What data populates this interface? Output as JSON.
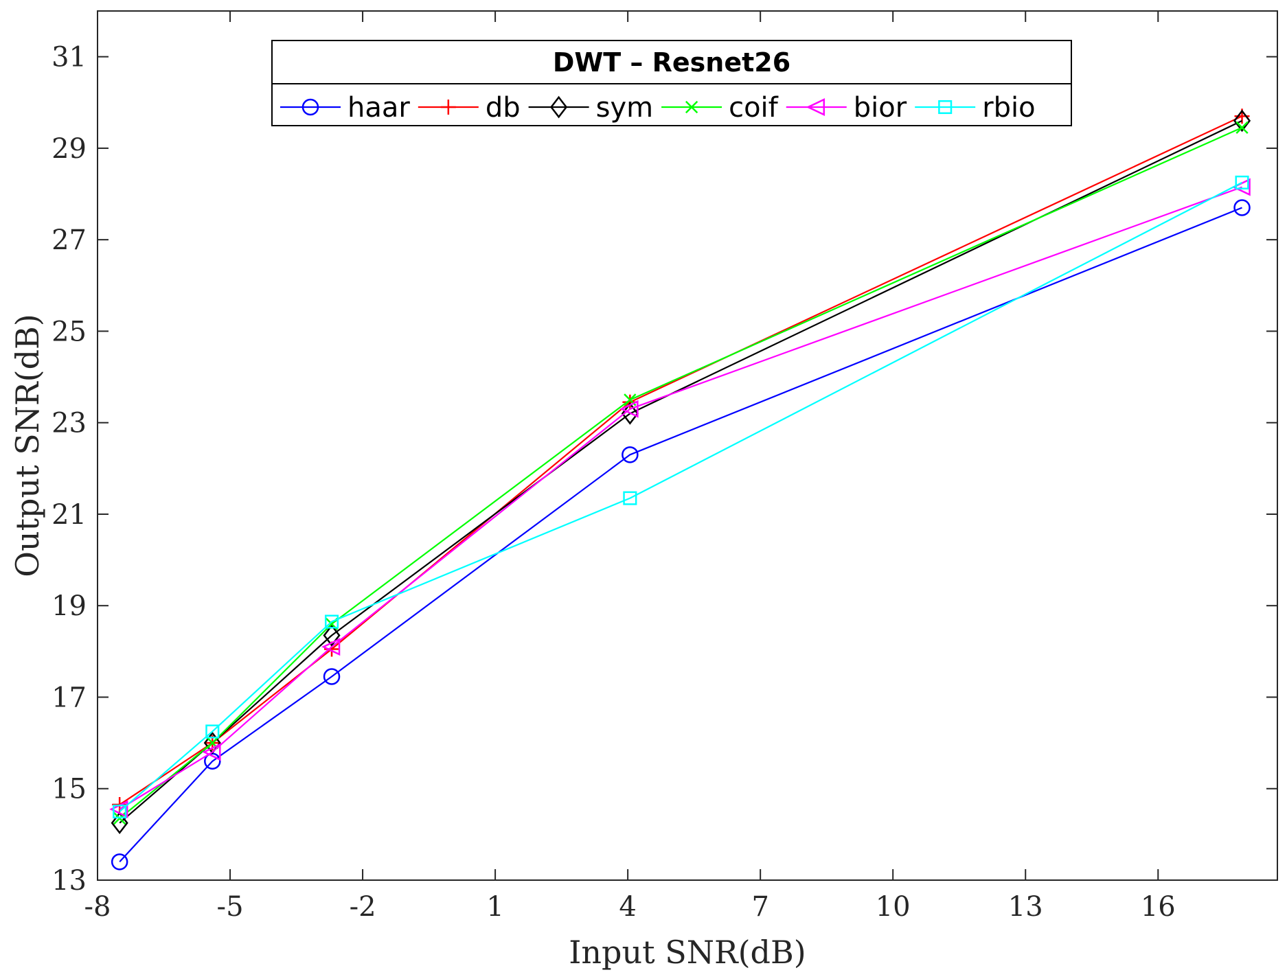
{
  "chart_data": {
    "type": "line",
    "title": "DWT – Resnet26",
    "xlabel": "Input SNR(dB)",
    "ylabel": "Output SNR(dB)",
    "xlim": [
      -8,
      18.7
    ],
    "ylim": [
      13,
      32
    ],
    "xticks": [
      -8,
      -5,
      -2,
      1,
      4,
      7,
      10,
      13,
      16
    ],
    "yticks": [
      13,
      15,
      17,
      19,
      21,
      23,
      25,
      27,
      29,
      31
    ],
    "x": [
      -7.5,
      -5.4,
      -2.7,
      4.05,
      17.9
    ],
    "series": [
      {
        "name": "haar",
        "color": "#0000ff",
        "marker": "circle",
        "values": [
          13.4,
          15.6,
          17.45,
          22.3,
          27.7
        ]
      },
      {
        "name": "db",
        "color": "#ff0000",
        "marker": "plus",
        "values": [
          14.65,
          16.0,
          18.05,
          23.45,
          29.7
        ]
      },
      {
        "name": "sym",
        "color": "#000000",
        "marker": "diamond",
        "values": [
          14.25,
          16.0,
          18.35,
          23.2,
          29.6
        ]
      },
      {
        "name": "coif",
        "color": "#00ff00",
        "marker": "x",
        "values": [
          14.35,
          16.0,
          18.6,
          23.5,
          29.45
        ]
      },
      {
        "name": "bior",
        "color": "#ff00ff",
        "marker": "triangle-left",
        "values": [
          14.55,
          15.8,
          18.1,
          23.3,
          28.15
        ]
      },
      {
        "name": "rbio",
        "color": "#00ffff",
        "marker": "square",
        "values": [
          14.5,
          16.25,
          18.65,
          21.35,
          28.25
        ]
      }
    ]
  }
}
